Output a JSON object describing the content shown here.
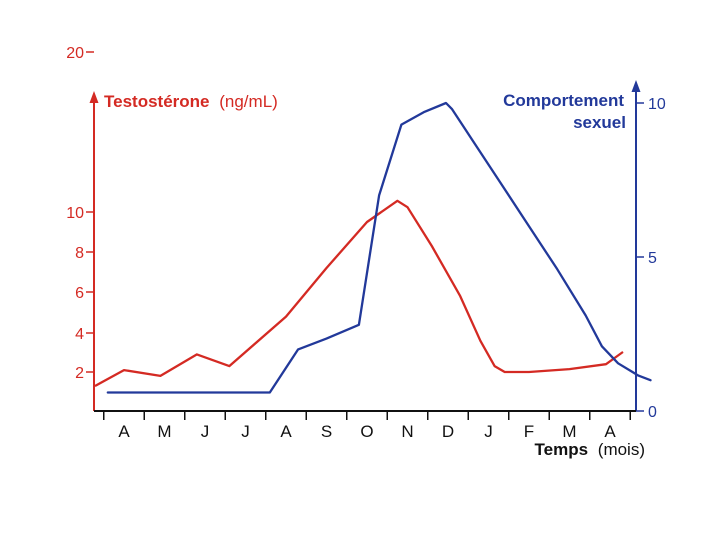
{
  "chart_data": {
    "type": "line",
    "categories": [
      "A",
      "M",
      "J",
      "J",
      "A",
      "S",
      "O",
      "N",
      "D",
      "J",
      "F",
      "M",
      "A"
    ],
    "xlabel_bold": "Temps",
    "xlabel_rest": "(mois)",
    "left_axis": {
      "label_bold": "Testostérone",
      "label_rest": "(ng/mL)",
      "ticks": [
        "2",
        "4",
        "6",
        "8",
        "10",
        "20"
      ],
      "color": "#d42a23"
    },
    "right_axis": {
      "label_line1": "Comportement",
      "label_line2": "sexuel",
      "ticks": [
        "0",
        "5",
        "10"
      ],
      "color": "#22399a"
    },
    "series": [
      {
        "axis": "left",
        "color": "#d42a23",
        "points": [
          [
            -0.7,
            1.3
          ],
          [
            0,
            2.1
          ],
          [
            0.9,
            1.8
          ],
          [
            1.8,
            2.9
          ],
          [
            2.6,
            2.3
          ],
          [
            4,
            4.8
          ],
          [
            5,
            7.2
          ],
          [
            6,
            9.5
          ],
          [
            6.75,
            10.7
          ],
          [
            7,
            10.3
          ],
          [
            7.6,
            8.3
          ],
          [
            8.3,
            5.8
          ],
          [
            8.8,
            3.6
          ],
          [
            9.15,
            2.3
          ],
          [
            9.4,
            2.0
          ],
          [
            10,
            2.0
          ],
          [
            11,
            2.15
          ],
          [
            11.9,
            2.4
          ],
          [
            12.3,
            3.0
          ]
        ]
      },
      {
        "axis": "right",
        "color": "#22399a",
        "points": [
          [
            -0.4,
            0.6
          ],
          [
            3.6,
            0.6
          ],
          [
            4.3,
            2.0
          ],
          [
            5,
            2.35
          ],
          [
            5.8,
            2.8
          ],
          [
            6.3,
            7.0
          ],
          [
            6.85,
            9.3
          ],
          [
            7.4,
            9.7
          ],
          [
            7.95,
            10.0
          ],
          [
            8.1,
            9.8
          ],
          [
            8.6,
            8.8
          ],
          [
            9.3,
            7.4
          ],
          [
            10,
            6.0
          ],
          [
            10.7,
            4.6
          ],
          [
            11.4,
            3.1
          ],
          [
            11.8,
            2.1
          ],
          [
            12.2,
            1.55
          ],
          [
            12.7,
            1.15
          ],
          [
            13,
            1.0
          ]
        ]
      }
    ]
  }
}
